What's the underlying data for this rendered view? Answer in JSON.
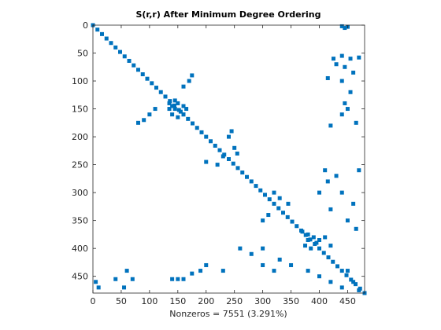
{
  "chart_data": {
    "type": "scatter",
    "title": "S(r,r) After Minimum Degree Ordering",
    "xlabel": "Nonzeros = 7551 (3.291%)",
    "color": "#0072bd",
    "xlim": [
      0,
      480
    ],
    "ylim": [
      0,
      480
    ],
    "y_reversed": true,
    "xticks": [
      0,
      50,
      100,
      150,
      200,
      250,
      300,
      350,
      400,
      450
    ],
    "yticks": [
      0,
      50,
      100,
      150,
      200,
      250,
      300,
      350,
      400,
      450
    ],
    "x": [
      0,
      8,
      16,
      24,
      32,
      40,
      48,
      56,
      64,
      72,
      80,
      88,
      96,
      104,
      112,
      120,
      128,
      136,
      144,
      152,
      160,
      168,
      176,
      184,
      192,
      200,
      208,
      216,
      224,
      232,
      240,
      248,
      256,
      264,
      272,
      280,
      288,
      296,
      304,
      312,
      320,
      328,
      336,
      344,
      352,
      360,
      368,
      376,
      384,
      392,
      400,
      408,
      416,
      424,
      432,
      440,
      448,
      456,
      464,
      472,
      480,
      440,
      445,
      450,
      425,
      440,
      455,
      470,
      430,
      445,
      460,
      415,
      440,
      455,
      445,
      450,
      440,
      420,
      465,
      5,
      60,
      55,
      70,
      140,
      150,
      160,
      175,
      190,
      200,
      230,
      40,
      10,
      135,
      140,
      145,
      150,
      155,
      160,
      165,
      140,
      150,
      145,
      160,
      135,
      170,
      175,
      160,
      100,
      90,
      80,
      110,
      240,
      245,
      250,
      230,
      220,
      200,
      255,
      370,
      380,
      390,
      400,
      375,
      385,
      395,
      410,
      420,
      380,
      410,
      430,
      440,
      460,
      470,
      420,
      450,
      465,
      400,
      415,
      260,
      280,
      300,
      330,
      350,
      380,
      400,
      420,
      440,
      460,
      470,
      450,
      300,
      320,
      320,
      330,
      345,
      310,
      300
    ],
    "values": [
      0,
      8,
      16,
      24,
      32,
      40,
      48,
      56,
      64,
      72,
      80,
      88,
      96,
      104,
      112,
      120,
      128,
      136,
      144,
      152,
      160,
      168,
      176,
      184,
      192,
      200,
      208,
      216,
      224,
      232,
      240,
      248,
      256,
      264,
      272,
      280,
      288,
      296,
      304,
      312,
      320,
      328,
      336,
      344,
      352,
      360,
      368,
      376,
      384,
      392,
      400,
      408,
      416,
      424,
      432,
      440,
      448,
      456,
      464,
      472,
      480,
      2,
      5,
      3,
      60,
      55,
      60,
      58,
      70,
      75,
      85,
      95,
      100,
      120,
      140,
      150,
      160,
      180,
      175,
      460,
      440,
      470,
      455,
      455,
      455,
      455,
      445,
      440,
      430,
      440,
      455,
      470,
      140,
      145,
      150,
      140,
      155,
      145,
      150,
      160,
      165,
      135,
      160,
      150,
      100,
      90,
      110,
      160,
      170,
      175,
      150,
      200,
      190,
      220,
      235,
      250,
      245,
      230,
      370,
      375,
      380,
      385,
      395,
      400,
      390,
      380,
      395,
      385,
      260,
      270,
      300,
      320,
      260,
      330,
      350,
      365,
      300,
      280,
      400,
      410,
      400,
      420,
      430,
      440,
      450,
      460,
      470,
      460,
      475,
      440,
      430,
      440,
      300,
      310,
      320,
      340,
      350
    ]
  }
}
